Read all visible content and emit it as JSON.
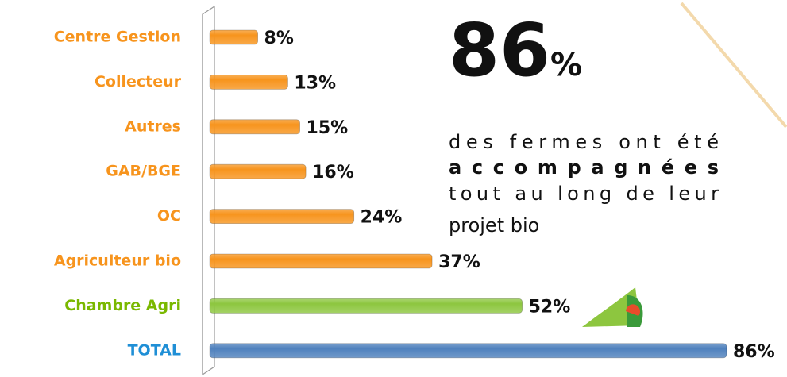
{
  "chart_data": {
    "type": "bar",
    "categories": [
      "Centre Gestion",
      "Collecteur",
      "Autres",
      "GAB/BGE",
      "OC",
      "Agriculteur bio",
      "Chambre Agri",
      "TOTAL"
    ],
    "values": [
      8,
      13,
      15,
      16,
      24,
      37,
      52,
      86
    ],
    "value_labels": [
      "8%",
      "13%",
      "15%",
      "16%",
      "24%",
      "37%",
      "52%",
      "86%"
    ],
    "colors": [
      "#f7941d",
      "#f7941d",
      "#f7941d",
      "#f7941d",
      "#f7941d",
      "#f7941d",
      "#8dc63f",
      "#4f81bd"
    ],
    "label_colors": [
      "#f7941d",
      "#f7941d",
      "#f7941d",
      "#f7941d",
      "#f7941d",
      "#f7941d",
      "#7ab800",
      "#1f8fd6"
    ],
    "xlim": [
      0,
      86
    ],
    "highlight": {
      "number": "86",
      "unit": "%"
    },
    "description": [
      "des fermes ont été",
      "accompagnées",
      "tout au long de leur",
      "projet bio"
    ]
  }
}
